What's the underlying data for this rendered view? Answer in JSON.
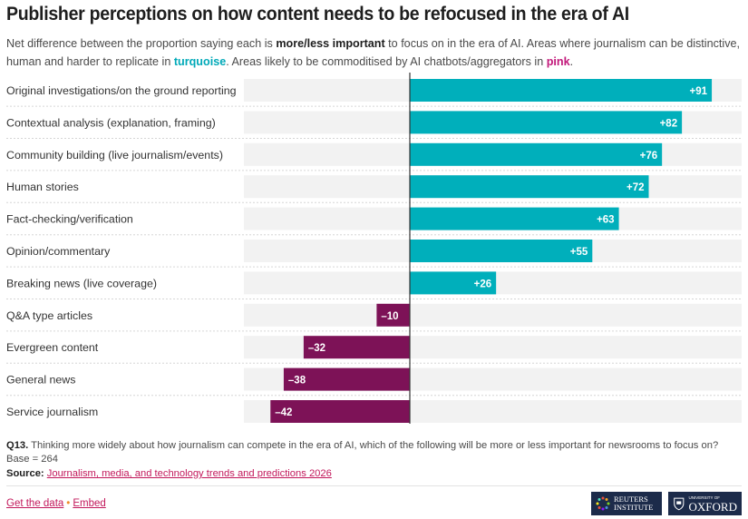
{
  "header": {
    "title": "Publisher perceptions on how content needs to be refocused in the era of AI",
    "subtitle_1": "Net difference between the proportion saying each is ",
    "subtitle_bold": "more/less important",
    "subtitle_2": " to focus on in the era of AI. Areas where journalism can be distinctive, human and harder to replicate in ",
    "subtitle_turquoise": "turquoise",
    "subtitle_3": ". Areas likely to be commoditised by AI chatbots/aggregators in ",
    "subtitle_pink": "pink",
    "subtitle_4": "."
  },
  "colors": {
    "positive": "#00AFBB",
    "negative": "#7D1257",
    "track": "#F2F2F2",
    "axis": "#333333",
    "link": "#C2185B"
  },
  "chart_data": {
    "type": "bar",
    "orientation": "horizontal",
    "title": "Publisher perceptions on how content needs to be refocused in the era of AI",
    "xlabel": "",
    "ylabel": "",
    "xlim": [
      -50,
      100
    ],
    "grid": false,
    "categories": [
      "Original investigations/on the ground reporting",
      "Contextual analysis (explanation, framing)",
      "Community building (live journalism/events)",
      "Human stories",
      "Fact-checking/verification",
      "Opinion/commentary",
      "Breaking news (live coverage)",
      "Q&A type articles",
      "Evergreen content",
      "General news",
      "Service journalism"
    ],
    "values": [
      91,
      82,
      76,
      72,
      63,
      55,
      26,
      -10,
      -32,
      -38,
      -42
    ],
    "data_labels": [
      "+91",
      "+82",
      "+76",
      "+72",
      "+63",
      "+55",
      "+26",
      "–10",
      "–32",
      "–38",
      "–42"
    ]
  },
  "footer": {
    "question_label": "Q13.",
    "question_text": " Thinking more widely about how journalism can compete in the era of AI, which of the following will be more or less important for newsrooms to focus on?",
    "base": "Base = 264",
    "source_label": "Source:",
    "source_link": "Journalism, media, and technology trends and predictions 2026",
    "get_data": "Get the data",
    "separator": "•",
    "embed": "Embed",
    "logo_reuters_line1": "REUTERS",
    "logo_reuters_line2": "INSTITUTE",
    "logo_oxford_small": "UNIVERSITY OF",
    "logo_oxford_big": "OXFORD"
  }
}
